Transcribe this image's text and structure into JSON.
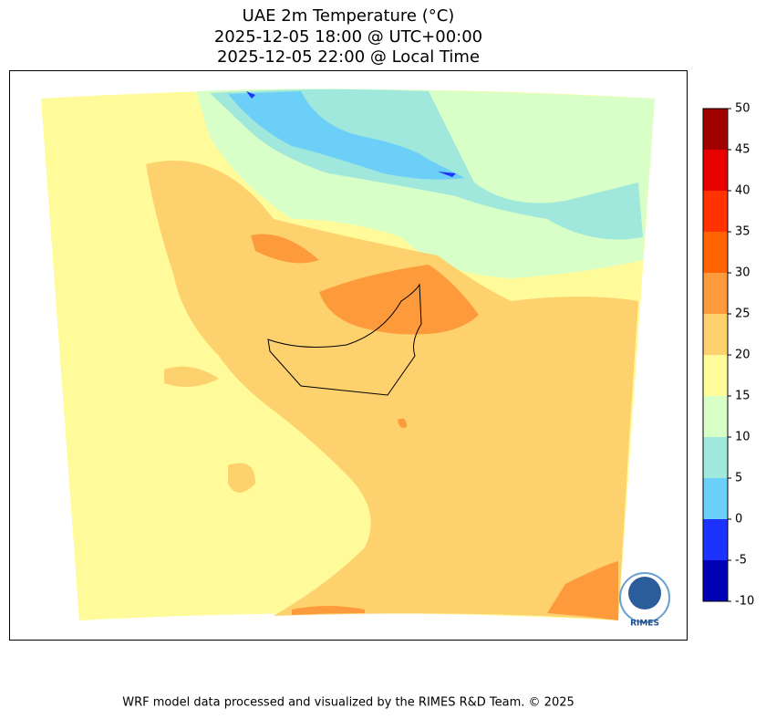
{
  "title": [
    "UAE 2m Temperature (°C)",
    "2025-12-05 18:00 @ UTC+00:00",
    "2025-12-05 22:00 @ Local Time"
  ],
  "colorbar": {
    "levels": [
      -10,
      -5,
      0,
      5,
      10,
      15,
      20,
      25,
      30,
      35,
      40,
      45,
      50
    ],
    "colors": [
      "#0000b4",
      "#1e32ff",
      "#6ccff8",
      "#a0e8dc",
      "#d8ffc8",
      "#fffb9a",
      "#fdd26e",
      "#fd9b3c",
      "#ff6400",
      "#ff3200",
      "#e60000",
      "#a00000"
    ]
  },
  "logo": "RIMES",
  "footer": "WRF model data processed and visualized by the RIMES R&D Team. © 2025"
}
